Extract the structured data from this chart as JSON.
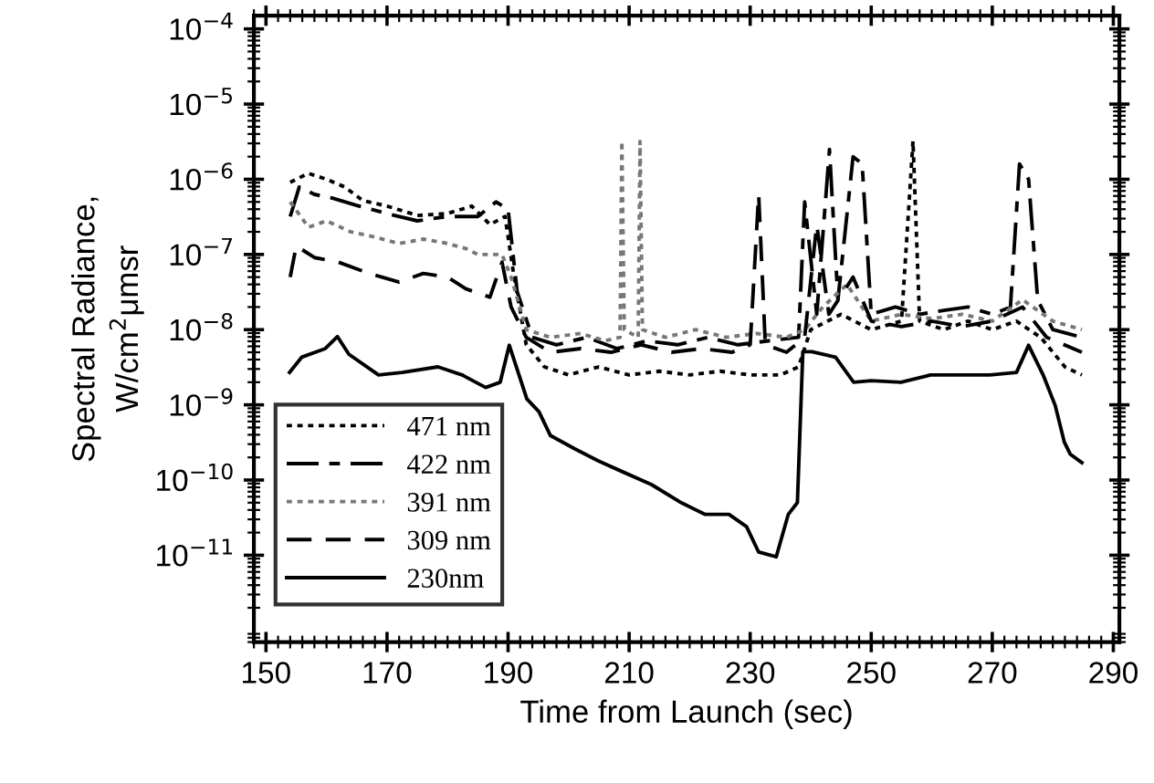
{
  "chart_data": {
    "type": "line",
    "xlabel": "Time from Launch (sec)",
    "ylabel": "Spectral Radiance,\nW/cm$^{2}$μmsr",
    "log": "y",
    "xlim": [
      148,
      291
    ],
    "ylim": [
      7e-13,
      0.00015
    ],
    "xticks": [
      150,
      170,
      190,
      210,
      230,
      250,
      270,
      290
    ],
    "yticks": [
      {
        "value": 0.0001,
        "label": "10$^{−4}$"
      },
      {
        "value": 1e-05,
        "label": "10$^{−5}$"
      },
      {
        "value": 1e-06,
        "label": "10$^{−6}$"
      },
      {
        "value": 1e-07,
        "label": "10$^{−7}$"
      },
      {
        "value": 1e-08,
        "label": "10$^{−8}$"
      },
      {
        "value": 1e-09,
        "label": "10$^{−9}$"
      },
      {
        "value": 1e-10,
        "label": "10$^{−10}$"
      },
      {
        "value": 1e-11,
        "label": "10$^{−11}$"
      }
    ],
    "grid": false,
    "legend": "bottom left",
    "series": [
      {
        "name": "471 nm",
        "color": "#000000",
        "line_style": "dotted",
        "x": [
          154,
          157,
          160,
          163,
          166,
          170,
          175,
          180,
          184,
          187,
          189.5,
          191,
          193,
          196,
          200,
          205,
          210,
          215,
          220,
          225,
          230,
          235,
          238,
          240,
          245,
          250,
          255,
          256.9,
          258,
          262,
          266,
          270,
          274,
          278,
          282,
          284.8
        ],
        "values": [
          9.1e-07,
          1.2e-06,
          1e-06,
          7.9e-07,
          5.2e-07,
          4.4e-07,
          3.3e-07,
          3.5e-07,
          4.4e-07,
          2.5e-07,
          3.2e-07,
          5e-08,
          6.3e-09,
          3.2e-09,
          2.5e-09,
          3.2e-09,
          2.5e-09,
          2.8e-09,
          2.5e-09,
          2.8e-09,
          2.5e-09,
          2.5e-09,
          3.2e-09,
          1e-08,
          1.6e-08,
          1e-08,
          1.3e-08,
          3.2e-06,
          1.3e-08,
          1e-08,
          1.3e-08,
          1e-08,
          1.3e-08,
          7.9e-09,
          3.2e-09,
          2.5e-09
        ]
      },
      {
        "name": "422 nm",
        "color": "#000000",
        "line_style": "dashdot",
        "x": [
          154,
          155.5,
          158,
          161,
          165,
          170,
          175,
          180,
          185,
          188,
          190,
          191.5,
          194,
          198,
          203,
          208,
          213,
          218,
          223,
          228,
          233,
          238,
          239,
          241,
          243.1,
          244.5,
          247,
          248.5,
          250,
          254,
          258,
          262,
          266,
          270,
          273,
          274.5,
          276,
          277.5,
          280,
          284.8
        ],
        "values": [
          3.2e-07,
          7.9e-07,
          6.3e-07,
          5.6e-07,
          4.5e-07,
          3.5e-07,
          2.8e-07,
          3.2e-07,
          3.2e-07,
          5e-07,
          4e-07,
          3.2e-08,
          7.9e-09,
          6.3e-09,
          7.9e-09,
          5.6e-09,
          7.1e-09,
          6.3e-09,
          7.9e-09,
          6.3e-09,
          7.1e-09,
          7.9e-09,
          5e-07,
          1.6e-08,
          2.5e-06,
          2.5e-08,
          2e-06,
          1.6e-06,
          1.6e-08,
          2e-08,
          1.6e-08,
          1.8e-08,
          2e-08,
          1.6e-08,
          2e-08,
          1.6e-06,
          1e-06,
          2.5e-08,
          1e-08,
          7.9e-09
        ]
      },
      {
        "name": "391 nm",
        "color": "#777777",
        "line_style": "dotted",
        "x": [
          154,
          157,
          160,
          164,
          168,
          172,
          176,
          180,
          183,
          185,
          189,
          190.5,
          193,
          197,
          202,
          206,
          208.5,
          208.8,
          209.2,
          211.5,
          211.8,
          212.2,
          216,
          221,
          226,
          231,
          236,
          239,
          242,
          246,
          250,
          255,
          260,
          265,
          270,
          275,
          280,
          284.8
        ],
        "values": [
          5e-07,
          2.3e-07,
          2.8e-07,
          2e-07,
          1.7e-07,
          1.4e-07,
          1.6e-07,
          1.4e-07,
          1.2e-07,
          1e-07,
          1e-07,
          5e-08,
          1e-08,
          7.9e-09,
          8.9e-09,
          7.1e-09,
          7.9e-09,
          3.2e-06,
          1e-08,
          7.9e-09,
          3.2e-06,
          1e-08,
          7.9e-09,
          1e-08,
          7.9e-09,
          8.9e-09,
          7.9e-09,
          1e-08,
          2e-08,
          4e-08,
          1.3e-08,
          1.6e-08,
          1.4e-08,
          1.6e-08,
          1.3e-08,
          2.5e-08,
          1.3e-08,
          1e-08
        ]
      },
      {
        "name": "309 nm",
        "color": "#000000",
        "line_style": "dashed",
        "x": [
          154,
          155,
          158,
          162,
          167,
          172,
          176,
          180,
          183,
          187,
          189,
          190.5,
          193,
          197,
          202,
          207,
          212,
          217,
          222,
          227,
          230,
          231.4,
          232.5,
          236,
          239,
          241,
          243,
          247,
          250,
          255,
          260,
          265,
          270,
          275,
          279,
          284.8
        ],
        "values": [
          5e-08,
          1.3e-07,
          9.1e-08,
          7.9e-08,
          5.6e-08,
          4.3e-08,
          5.6e-08,
          5e-08,
          3.5e-08,
          2.7e-08,
          7.9e-08,
          2e-08,
          7.9e-09,
          5e-09,
          5.6e-09,
          5e-09,
          6.3e-09,
          5e-09,
          5.6e-09,
          5e-09,
          6.3e-09,
          6.3e-07,
          6.3e-09,
          5e-09,
          7.9e-09,
          2.5e-07,
          1.6e-08,
          5e-08,
          1.3e-08,
          1.1e-08,
          1.3e-08,
          1.1e-08,
          1.3e-08,
          2e-08,
          7.9e-09,
          5e-09
        ]
      },
      {
        "name": "230nm",
        "color": "#000000",
        "line_style": "solid",
        "x": [
          153.9,
          155.9,
          159.8,
          161.8,
          163.7,
          168.6,
          172.5,
          178.4,
          182.4,
          186.3,
          188.7,
          190.2,
          193.1,
          195.1,
          197,
          201,
          204.9,
          208.8,
          213.7,
          218.6,
          222.5,
          226.5,
          229.4,
          231.4,
          234.3,
          236.3,
          237.8,
          238.7,
          240.2,
          244.1,
          247.1,
          250,
          254.9,
          259.8,
          264.7,
          269.6,
          274,
          276,
          278.4,
          280.4,
          281.9,
          282.9,
          284.8
        ],
        "values": [
          2.7e-09,
          4.3e-09,
          5.6e-09,
          8.1e-09,
          4.7e-09,
          2.5e-09,
          2.7e-09,
          3.2e-09,
          2.5e-09,
          1.7e-09,
          2e-09,
          6.2e-09,
          1.2e-09,
          8.1e-10,
          3.9e-10,
          2.6e-10,
          1.8e-10,
          1.3e-10,
          8.7e-11,
          5e-11,
          3.5e-11,
          3.5e-11,
          2.4e-11,
          1.1e-11,
          9.5e-12,
          3.5e-11,
          5e-11,
          5.1e-09,
          5.1e-09,
          4.3e-09,
          2e-09,
          2.1e-09,
          2e-09,
          2.5e-09,
          2.5e-09,
          2.5e-09,
          2.7e-09,
          6.2e-09,
          2.5e-09,
          9.8e-10,
          3.2e-10,
          2.2e-10,
          1.7e-10
        ]
      }
    ]
  }
}
